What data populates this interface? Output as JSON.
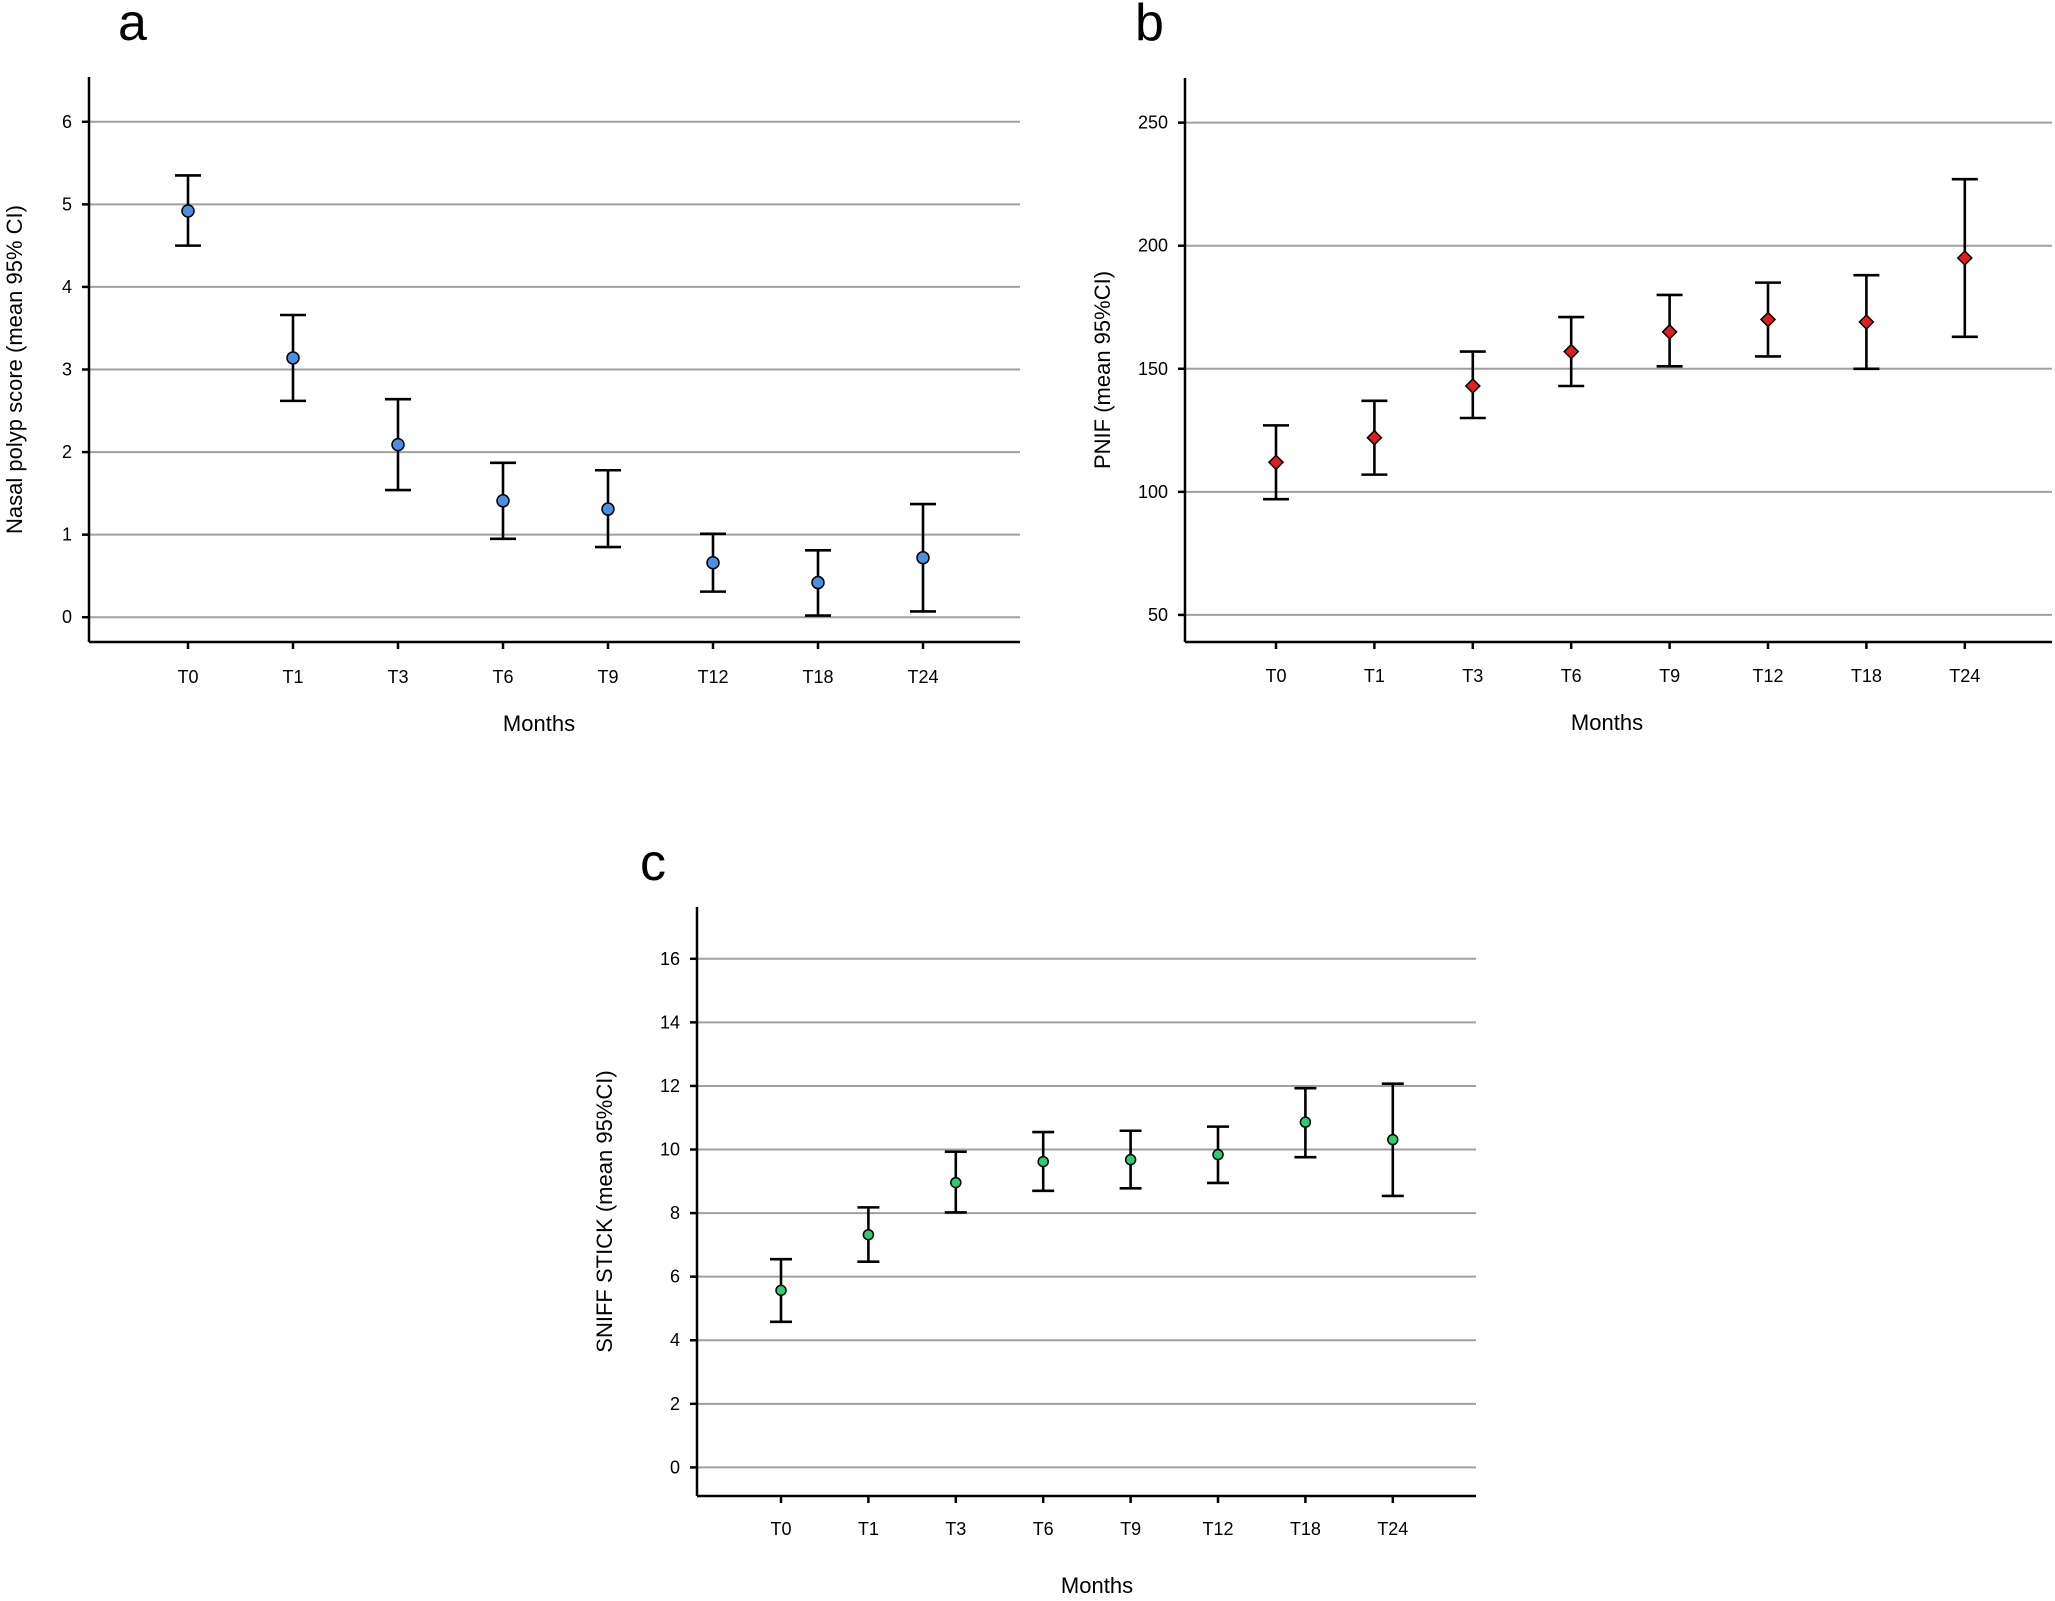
{
  "chart_data": [
    {
      "type": "scatter",
      "panel_label": "a",
      "categories": [
        "T0",
        "T1",
        "T3",
        "T6",
        "T9",
        "T12",
        "T18",
        "T24"
      ],
      "values": [
        4.92,
        3.14,
        2.09,
        1.41,
        1.31,
        0.66,
        0.42,
        0.72
      ],
      "ci_lower": [
        4.5,
        2.62,
        1.54,
        0.95,
        0.85,
        0.31,
        0.02,
        0.07
      ],
      "ci_upper": [
        5.35,
        3.66,
        2.64,
        1.87,
        1.78,
        1.01,
        0.81,
        1.37
      ],
      "xlabel": "Months",
      "ylabel": "Nasal polyp score (mean 95% CI)",
      "ylim": [
        -0.3,
        6.3
      ],
      "yticks": [
        0,
        1,
        2,
        3,
        4,
        5,
        6
      ],
      "marker": "circle",
      "marker_color": "#4a90e2",
      "grid": true
    },
    {
      "type": "scatter",
      "panel_label": "b",
      "categories": [
        "T0",
        "T1",
        "T3",
        "T6",
        "T9",
        "T12",
        "T18",
        "T24"
      ],
      "values": [
        112,
        122,
        143,
        157,
        165,
        170,
        169,
        195
      ],
      "ci_lower": [
        97,
        107,
        130,
        143,
        151,
        155,
        150,
        163
      ],
      "ci_upper": [
        127,
        137,
        157,
        171,
        180,
        185,
        188,
        227
      ],
      "xlabel": "Months",
      "ylabel": "PNIF (mean 95%CI)",
      "ylim": [
        39,
        260
      ],
      "yticks": [
        50,
        100,
        150,
        200,
        250
      ],
      "marker": "diamond",
      "marker_color": "#e01e1e",
      "grid": true
    },
    {
      "type": "scatter",
      "panel_label": "c",
      "categories": [
        "T0",
        "T1",
        "T3",
        "T6",
        "T9",
        "T12",
        "T18",
        "T24"
      ],
      "values": [
        5.57,
        7.32,
        8.96,
        9.62,
        9.68,
        9.84,
        10.86,
        10.31
      ],
      "ci_lower": [
        4.58,
        6.47,
        8.02,
        8.7,
        8.78,
        8.95,
        9.76,
        8.54
      ],
      "ci_upper": [
        6.55,
        8.18,
        9.93,
        10.55,
        10.59,
        10.72,
        11.93,
        12.07
      ],
      "xlabel": "Months",
      "ylabel": "SNIFF STICK (mean 95%CI)",
      "ylim": [
        -0.9,
        17.0
      ],
      "yticks": [
        0,
        2,
        4,
        6,
        8,
        10,
        12,
        14,
        16
      ],
      "marker": "circle",
      "marker_color": "#2ecc71",
      "grid": true
    }
  ]
}
